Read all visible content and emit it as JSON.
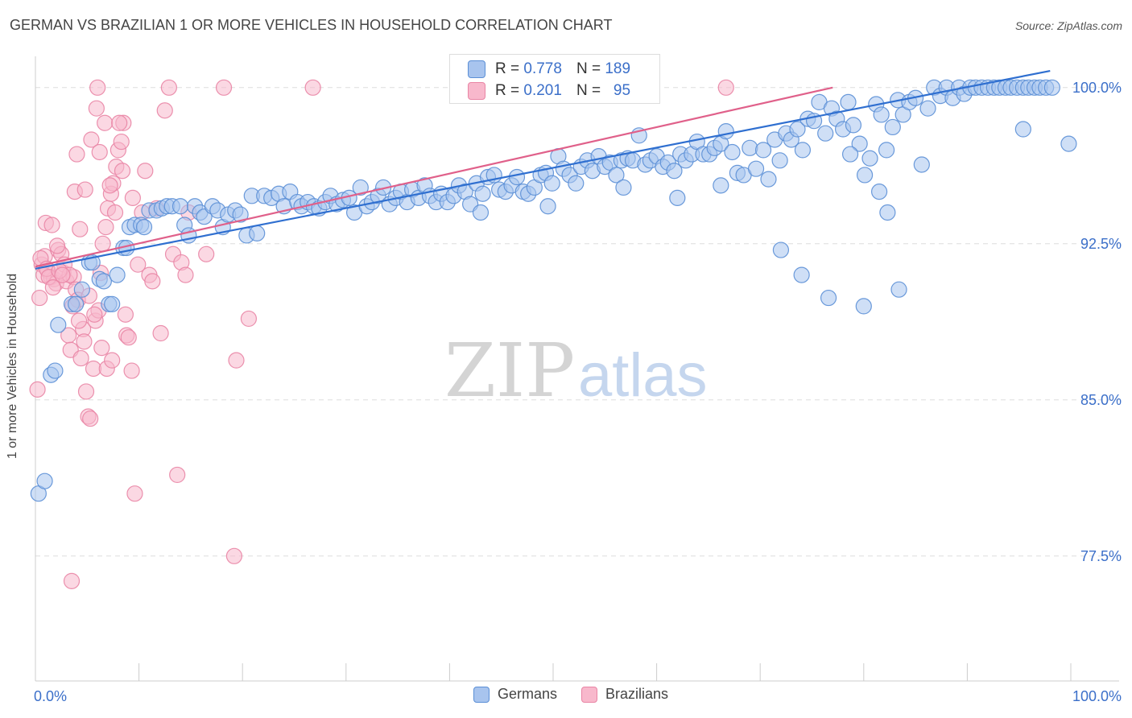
{
  "title": "GERMAN VS BRAZILIAN 1 OR MORE VEHICLES IN HOUSEHOLD CORRELATION CHART",
  "source": "Source: ZipAtlas.com",
  "watermark": {
    "zip": "ZIP",
    "atlas": "atlas"
  },
  "legend": {
    "rows": [
      {
        "r_label": "R =",
        "r_value": "0.778",
        "n_label": "N =",
        "n_value": "189"
      },
      {
        "r_label": "R =",
        "r_value": "0.201",
        "n_label": "N =",
        "n_value": "95"
      }
    ]
  },
  "colors": {
    "german_fill": "#a8c4ee",
    "german_stroke": "#5b8fd6",
    "german_line": "#2f6fd0",
    "brazilian_fill": "#f8b8cc",
    "brazilian_stroke": "#e985a5",
    "brazilian_line": "#e0608a",
    "grid": "#dddddd",
    "tick_label": "#3b6fc9"
  },
  "chart_data": {
    "type": "scatter",
    "title": "GERMAN VS BRAZILIAN 1 OR MORE VEHICLES IN HOUSEHOLD CORRELATION CHART",
    "xlabel": "",
    "ylabel": "1 or more Vehicles in Household",
    "x_range": [
      0,
      100
    ],
    "y_range": [
      71.5,
      101.5
    ],
    "x_tick_labels": {
      "min": "0.0%",
      "max": "100.0%"
    },
    "y_ticks": [
      {
        "value": 100.0,
        "label": "100.0%"
      },
      {
        "value": 92.5,
        "label": "92.5%"
      },
      {
        "value": 85.0,
        "label": "85.0%"
      },
      {
        "value": 77.5,
        "label": "77.5%"
      }
    ],
    "series": [
      {
        "name": "Germans",
        "r": 0.778,
        "n": 189,
        "trend": {
          "x": [
            0,
            98
          ],
          "y": [
            91.3,
            100.8
          ]
        },
        "points": [
          [
            0.3,
            80.5
          ],
          [
            0.9,
            81.1
          ],
          [
            1.5,
            86.2
          ],
          [
            1.9,
            86.4
          ],
          [
            2.2,
            88.6
          ],
          [
            3.5,
            89.6
          ],
          [
            3.9,
            89.6
          ],
          [
            4.5,
            90.3
          ],
          [
            5.2,
            91.6
          ],
          [
            5.5,
            91.6
          ],
          [
            6.2,
            90.8
          ],
          [
            6.6,
            90.7
          ],
          [
            7.1,
            89.6
          ],
          [
            7.4,
            89.6
          ],
          [
            7.9,
            91.0
          ],
          [
            8.5,
            92.3
          ],
          [
            8.8,
            92.3
          ],
          [
            9.1,
            93.3
          ],
          [
            9.6,
            93.4
          ],
          [
            10.2,
            93.4
          ],
          [
            10.5,
            93.3
          ],
          [
            11.0,
            94.1
          ],
          [
            11.7,
            94.1
          ],
          [
            12.2,
            94.2
          ],
          [
            12.7,
            94.3
          ],
          [
            13.2,
            94.3
          ],
          [
            14.0,
            94.3
          ],
          [
            14.4,
            93.4
          ],
          [
            14.8,
            92.9
          ],
          [
            15.4,
            94.3
          ],
          [
            15.9,
            94.0
          ],
          [
            16.3,
            93.8
          ],
          [
            17.1,
            94.3
          ],
          [
            17.6,
            94.1
          ],
          [
            18.1,
            93.3
          ],
          [
            18.6,
            93.9
          ],
          [
            19.3,
            94.1
          ],
          [
            19.8,
            93.9
          ],
          [
            20.4,
            92.9
          ],
          [
            20.9,
            94.8
          ],
          [
            21.4,
            93.0
          ],
          [
            22.1,
            94.8
          ],
          [
            22.8,
            94.7
          ],
          [
            23.5,
            94.9
          ],
          [
            24.0,
            94.3
          ],
          [
            24.6,
            95.0
          ],
          [
            25.3,
            94.5
          ],
          [
            25.7,
            94.3
          ],
          [
            26.3,
            94.5
          ],
          [
            26.9,
            94.3
          ],
          [
            27.4,
            94.2
          ],
          [
            28.0,
            94.5
          ],
          [
            28.5,
            94.8
          ],
          [
            29.1,
            94.4
          ],
          [
            29.7,
            94.6
          ],
          [
            30.3,
            94.7
          ],
          [
            30.8,
            94.0
          ],
          [
            31.4,
            95.2
          ],
          [
            32.0,
            94.3
          ],
          [
            32.5,
            94.5
          ],
          [
            33.1,
            94.8
          ],
          [
            33.6,
            95.2
          ],
          [
            34.2,
            94.4
          ],
          [
            34.8,
            94.7
          ],
          [
            35.3,
            95.0
          ],
          [
            35.9,
            94.5
          ],
          [
            36.4,
            95.1
          ],
          [
            37.0,
            94.7
          ],
          [
            37.6,
            95.3
          ],
          [
            38.1,
            94.8
          ],
          [
            38.7,
            94.5
          ],
          [
            39.2,
            94.9
          ],
          [
            39.8,
            94.5
          ],
          [
            40.4,
            94.8
          ],
          [
            40.9,
            95.3
          ],
          [
            41.5,
            95.0
          ],
          [
            42.0,
            94.4
          ],
          [
            42.6,
            95.4
          ],
          [
            43.2,
            94.9
          ],
          [
            43.7,
            95.7
          ],
          [
            44.3,
            95.8
          ],
          [
            44.8,
            95.1
          ],
          [
            45.4,
            95.0
          ],
          [
            46.0,
            95.3
          ],
          [
            46.5,
            95.7
          ],
          [
            47.1,
            95.0
          ],
          [
            47.6,
            94.9
          ],
          [
            48.2,
            95.2
          ],
          [
            48.8,
            95.8
          ],
          [
            49.3,
            95.9
          ],
          [
            49.9,
            95.4
          ],
          [
            50.5,
            96.7
          ],
          [
            51.0,
            96.1
          ],
          [
            51.6,
            95.8
          ],
          [
            52.2,
            95.4
          ],
          [
            52.7,
            96.2
          ],
          [
            53.3,
            96.5
          ],
          [
            53.8,
            96.0
          ],
          [
            54.4,
            96.7
          ],
          [
            55.0,
            96.2
          ],
          [
            55.5,
            96.4
          ],
          [
            56.1,
            95.8
          ],
          [
            56.6,
            96.5
          ],
          [
            57.2,
            96.6
          ],
          [
            57.7,
            96.5
          ],
          [
            58.3,
            97.7
          ],
          [
            58.9,
            96.3
          ],
          [
            59.4,
            96.5
          ],
          [
            60.0,
            96.7
          ],
          [
            60.6,
            96.2
          ],
          [
            61.1,
            96.4
          ],
          [
            61.7,
            96.0
          ],
          [
            62.3,
            96.8
          ],
          [
            62.8,
            96.5
          ],
          [
            63.4,
            96.8
          ],
          [
            63.9,
            97.4
          ],
          [
            64.5,
            96.8
          ],
          [
            65.1,
            96.8
          ],
          [
            65.6,
            97.1
          ],
          [
            66.2,
            97.3
          ],
          [
            66.7,
            97.9
          ],
          [
            67.3,
            96.9
          ],
          [
            67.8,
            95.9
          ],
          [
            68.4,
            95.8
          ],
          [
            69.0,
            97.1
          ],
          [
            69.6,
            96.1
          ],
          [
            70.3,
            97.0
          ],
          [
            70.8,
            95.6
          ],
          [
            71.4,
            97.5
          ],
          [
            71.9,
            96.5
          ],
          [
            72.5,
            97.8
          ],
          [
            73.0,
            97.5
          ],
          [
            73.6,
            98.0
          ],
          [
            74.1,
            97.0
          ],
          [
            74.6,
            98.5
          ],
          [
            75.2,
            98.4
          ],
          [
            75.7,
            99.3
          ],
          [
            76.3,
            97.8
          ],
          [
            76.9,
            99.0
          ],
          [
            77.4,
            98.5
          ],
          [
            78.0,
            98.0
          ],
          [
            78.5,
            99.3
          ],
          [
            79.0,
            98.2
          ],
          [
            79.6,
            97.3
          ],
          [
            80.1,
            95.8
          ],
          [
            80.6,
            96.6
          ],
          [
            81.2,
            99.2
          ],
          [
            81.7,
            98.7
          ],
          [
            82.2,
            97.0
          ],
          [
            82.8,
            98.1
          ],
          [
            83.3,
            99.4
          ],
          [
            83.8,
            98.7
          ],
          [
            84.4,
            99.3
          ],
          [
            85.0,
            99.5
          ],
          [
            85.6,
            96.3
          ],
          [
            86.2,
            99.0
          ],
          [
            86.8,
            100.0
          ],
          [
            87.4,
            99.6
          ],
          [
            88.0,
            100.0
          ],
          [
            88.6,
            99.5
          ],
          [
            89.2,
            100.0
          ],
          [
            89.7,
            99.7
          ],
          [
            90.3,
            100.0
          ],
          [
            90.8,
            100.0
          ],
          [
            91.4,
            100.0
          ],
          [
            92.0,
            100.0
          ],
          [
            92.6,
            100.0
          ],
          [
            93.1,
            100.0
          ],
          [
            93.7,
            100.0
          ],
          [
            94.2,
            100.0
          ],
          [
            94.8,
            100.0
          ],
          [
            95.4,
            100.0
          ],
          [
            95.9,
            100.0
          ],
          [
            96.5,
            100.0
          ],
          [
            97.0,
            100.0
          ],
          [
            97.6,
            100.0
          ],
          [
            98.2,
            100.0
          ],
          [
            99.8,
            97.3
          ],
          [
            72.0,
            92.2
          ],
          [
            74.0,
            91.0
          ],
          [
            76.6,
            89.9
          ],
          [
            80.0,
            89.5
          ],
          [
            83.4,
            90.3
          ],
          [
            66.2,
            95.3
          ],
          [
            56.8,
            95.2
          ],
          [
            62.0,
            94.7
          ],
          [
            49.5,
            94.3
          ],
          [
            43.0,
            94.0
          ],
          [
            81.5,
            95.0
          ],
          [
            82.3,
            94.0
          ],
          [
            78.7,
            96.8
          ],
          [
            95.4,
            98.0
          ]
        ]
      },
      {
        "name": "Brazilians",
        "r": 0.201,
        "n": 95,
        "trend": {
          "x": [
            0,
            77
          ],
          "y": [
            91.4,
            100.0
          ]
        },
        "points": [
          [
            0.2,
            85.5
          ],
          [
            0.4,
            89.9
          ],
          [
            0.6,
            91.5
          ],
          [
            0.9,
            91.9
          ],
          [
            1.2,
            91.2
          ],
          [
            1.5,
            90.9
          ],
          [
            1.8,
            90.8
          ],
          [
            2.0,
            90.6
          ],
          [
            2.2,
            92.2
          ],
          [
            2.5,
            92.0
          ],
          [
            2.7,
            91.1
          ],
          [
            3.0,
            90.7
          ],
          [
            3.2,
            88.1
          ],
          [
            3.4,
            87.4
          ],
          [
            3.7,
            90.9
          ],
          [
            3.9,
            90.3
          ],
          [
            4.1,
            89.8
          ],
          [
            4.4,
            87.0
          ],
          [
            4.6,
            88.4
          ],
          [
            4.9,
            85.4
          ],
          [
            5.1,
            84.2
          ],
          [
            5.3,
            84.1
          ],
          [
            5.6,
            86.5
          ],
          [
            5.8,
            88.8
          ],
          [
            6.1,
            89.3
          ],
          [
            6.3,
            91.1
          ],
          [
            6.5,
            92.5
          ],
          [
            6.8,
            93.3
          ],
          [
            7.0,
            94.2
          ],
          [
            7.3,
            94.9
          ],
          [
            7.5,
            95.4
          ],
          [
            7.8,
            96.2
          ],
          [
            8.0,
            97.0
          ],
          [
            8.3,
            97.4
          ],
          [
            8.5,
            98.3
          ],
          [
            8.8,
            88.1
          ],
          [
            9.0,
            88.0
          ],
          [
            9.3,
            86.4
          ],
          [
            9.6,
            80.5
          ],
          [
            9.9,
            91.5
          ],
          [
            10.3,
            94.0
          ],
          [
            10.6,
            96.0
          ],
          [
            11.0,
            91.0
          ],
          [
            11.3,
            90.7
          ],
          [
            11.7,
            94.2
          ],
          [
            12.1,
            88.2
          ],
          [
            12.5,
            98.9
          ],
          [
            12.9,
            100.0
          ],
          [
            13.3,
            92.0
          ],
          [
            13.7,
            81.4
          ],
          [
            14.1,
            91.6
          ],
          [
            14.5,
            91.0
          ],
          [
            1.0,
            93.5
          ],
          [
            1.6,
            93.4
          ],
          [
            2.1,
            92.4
          ],
          [
            2.8,
            91.5
          ],
          [
            3.3,
            91.0
          ],
          [
            3.8,
            95.0
          ],
          [
            4.0,
            96.8
          ],
          [
            4.3,
            93.2
          ],
          [
            4.8,
            95.1
          ],
          [
            5.4,
            97.5
          ],
          [
            5.9,
            99.0
          ],
          [
            6.2,
            96.9
          ],
          [
            6.7,
            98.3
          ],
          [
            7.2,
            95.3
          ],
          [
            7.7,
            94.0
          ],
          [
            8.1,
            98.3
          ],
          [
            8.4,
            96.0
          ],
          [
            8.7,
            89.1
          ],
          [
            9.4,
            94.7
          ],
          [
            0.5,
            91.8
          ],
          [
            0.8,
            91.0
          ],
          [
            1.1,
            91.3
          ],
          [
            1.3,
            90.9
          ],
          [
            1.7,
            90.4
          ],
          [
            2.3,
            91.2
          ],
          [
            2.6,
            91.0
          ],
          [
            3.6,
            89.5
          ],
          [
            4.2,
            88.8
          ],
          [
            4.7,
            87.8
          ],
          [
            5.2,
            90.0
          ],
          [
            5.7,
            89.1
          ],
          [
            6.4,
            87.5
          ],
          [
            6.9,
            86.5
          ],
          [
            7.4,
            86.9
          ],
          [
            19.4,
            86.9
          ],
          [
            19.2,
            77.5
          ],
          [
            20.6,
            88.9
          ],
          [
            3.5,
            76.3
          ],
          [
            6.0,
            100.0
          ],
          [
            18.2,
            100.0
          ],
          [
            26.8,
            100.0
          ],
          [
            66.7,
            100.0
          ],
          [
            16.5,
            92.0
          ],
          [
            14.8,
            94.0
          ]
        ]
      }
    ]
  },
  "bottom_legend": {
    "items": [
      {
        "label": "Germans"
      },
      {
        "label": "Brazilians"
      }
    ]
  }
}
